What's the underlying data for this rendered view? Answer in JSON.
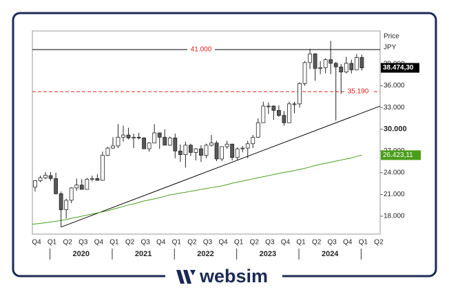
{
  "chart_data": {
    "type": "candlestick",
    "y_label_top": "Price",
    "y_label_unit": "JPY",
    "ylim": [
      15530,
      43560
    ],
    "yticks": [
      {
        "value": 18000,
        "label": "18.000"
      },
      {
        "value": 21000,
        "label": "21.000"
      },
      {
        "value": 24000,
        "label": "24.000"
      },
      {
        "value": 27000,
        "label": "27.000"
      },
      {
        "value": 30000,
        "label": "30.000"
      },
      {
        "value": 33000,
        "label": "33.000"
      },
      {
        "value": 36000,
        "label": "36.000"
      },
      {
        "value": 39000,
        "label": "39.000"
      }
    ],
    "bold_tick": 30000,
    "quarters": [
      "Q4",
      "Q1",
      "Q2",
      "Q3",
      "Q4",
      "Q1",
      "Q2",
      "Q3",
      "Q4",
      "Q1",
      "Q2",
      "Q3",
      "Q4",
      "Q1",
      "Q2",
      "Q3",
      "Q4",
      "Q1",
      "Q2",
      "Q3",
      "Q4",
      "Q1",
      "Q2"
    ],
    "years": [
      "2020",
      "2021",
      "2022",
      "2023",
      "2024"
    ],
    "up_color": "#ffffff",
    "down_color": "#595959",
    "open": [
      22000,
      22900,
      23300,
      23600,
      23200,
      21100,
      18900,
      20200,
      21900,
      22300,
      21700,
      23100,
      23200,
      22950,
      26400,
      27400,
      27700,
      28900,
      29200,
      28800,
      28900,
      28800,
      27300,
      28100,
      29500,
      28900,
      27800,
      28800,
      27000,
      26500,
      27800,
      26800,
      27300,
      26400,
      27800,
      28100,
      25900,
      27600,
      27950,
      26100,
      27300,
      27400,
      28000,
      28900,
      30900,
      33200,
      33200,
      32600,
      31900,
      30900,
      33500,
      33500,
      36300,
      39200,
      40400,
      38400,
      38500,
      39600,
      39100,
      38600,
      37900,
      39100,
      38200,
      39900
    ],
    "high": [
      23000,
      23600,
      24100,
      24100,
      24000,
      21400,
      20400,
      22000,
      23200,
      23100,
      23300,
      23600,
      23800,
      26900,
      27600,
      28900,
      30700,
      30500,
      30200,
      29400,
      29500,
      28900,
      28200,
      30700,
      29500,
      30000,
      29000,
      29400,
      27900,
      28300,
      28000,
      27400,
      27800,
      28000,
      29200,
      28400,
      27600,
      28400,
      28000,
      27500,
      27700,
      28400,
      29200,
      31500,
      33800,
      33700,
      33300,
      33300,
      32500,
      33800,
      33800,
      36500,
      39400,
      41100,
      40500,
      39400,
      39800,
      42200,
      39300,
      39000,
      40000,
      39600,
      40400,
      40300
    ],
    "low": [
      21400,
      22700,
      23100,
      22900,
      21000,
      16500,
      17700,
      19800,
      21500,
      21700,
      21700,
      22800,
      22900,
      22900,
      26300,
      27300,
      27400,
      28300,
      28600,
      27400,
      28600,
      27300,
      26900,
      28100,
      27300,
      27800,
      27700,
      26000,
      25500,
      24700,
      26300,
      25700,
      25500,
      26000,
      27600,
      25600,
      25600,
      27300,
      25700,
      25700,
      26800,
      26000,
      27400,
      28800,
      30900,
      32100,
      31300,
      31700,
      30500,
      30900,
      32200,
      33000,
      36000,
      38300,
      36700,
      37600,
      37700,
      37600,
      31200,
      34900,
      37700,
      37700,
      38200,
      38100
    ],
    "close": [
      22900,
      23300,
      23650,
      23200,
      21100,
      18900,
      20200,
      21900,
      22300,
      21700,
      23100,
      23200,
      22950,
      26400,
      27400,
      27700,
      28900,
      29200,
      28800,
      28900,
      28800,
      27300,
      28100,
      29500,
      28900,
      27800,
      28800,
      27000,
      26500,
      27800,
      26800,
      27300,
      26400,
      27800,
      28100,
      25900,
      27600,
      27950,
      26100,
      27300,
      27400,
      28000,
      28900,
      30900,
      33200,
      33200,
      32600,
      31900,
      30900,
      33500,
      33500,
      36300,
      39200,
      40400,
      38400,
      38500,
      39600,
      39100,
      38600,
      37900,
      39100,
      38200,
      39900,
      38474.3
    ],
    "close_label": "38.474,30",
    "ma": {
      "color": "#4a9e1a",
      "values": [
        16900,
        17000,
        17100,
        17200,
        17300,
        17400,
        17550,
        17700,
        17850,
        18000,
        18150,
        18300,
        18450,
        18600,
        18750,
        18950,
        19150,
        19350,
        19550,
        19700,
        19900,
        20100,
        20250,
        20400,
        20550,
        20750,
        20950,
        21050,
        21200,
        21300,
        21450,
        21550,
        21700,
        21800,
        21950,
        22050,
        22200,
        22350,
        22550,
        22700,
        22850,
        23000,
        23150,
        23300,
        23450,
        23600,
        23750,
        23900,
        24050,
        24150,
        24300,
        24450,
        24600,
        24800,
        25000,
        25150,
        25300,
        25450,
        25600,
        25750,
        25900,
        26050,
        26250,
        26423.11
      ],
      "value_label": "26.423,11"
    },
    "trendline": {
      "start": 16500,
      "end": 33200
    },
    "levels": [
      {
        "value": 41000,
        "label": "41.000",
        "dashed": false,
        "color": "#000000",
        "label_color": "#e0201b"
      },
      {
        "value": 35190,
        "label": "35.190",
        "dashed": true,
        "color": "#e0201b",
        "label_color": "#e0201b"
      }
    ]
  },
  "logo": "websim"
}
